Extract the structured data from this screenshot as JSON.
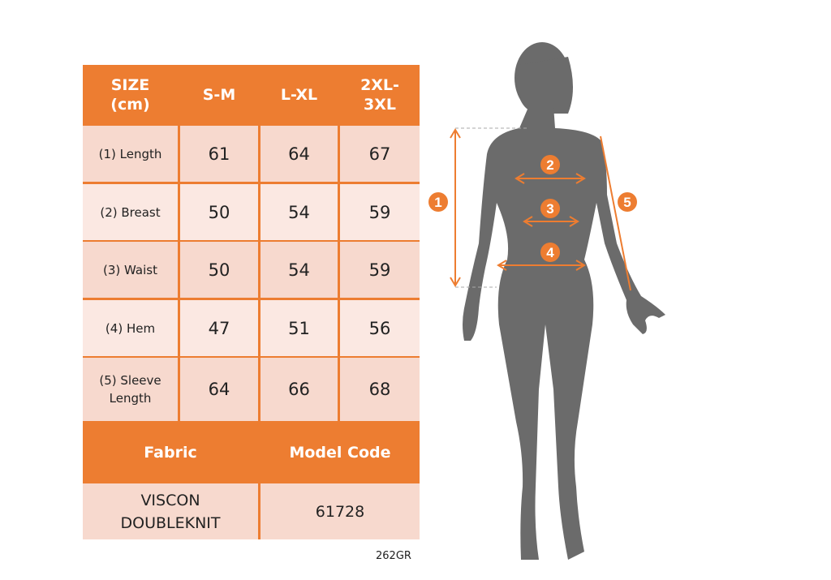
{
  "table": {
    "header": [
      "SIZE (cm)",
      "S-M",
      "L-XL",
      "2XL-3XL"
    ],
    "header_lines": [
      [
        "SIZE",
        "(cm)"
      ],
      [
        "S-M"
      ],
      [
        "L-XL"
      ],
      [
        "2XL-",
        "3XL"
      ]
    ],
    "rows": [
      {
        "label": "(1) Length",
        "values": [
          "61",
          "64",
          "67"
        ]
      },
      {
        "label": "(2) Breast",
        "values": [
          "50",
          "54",
          "59"
        ]
      },
      {
        "label": "(3) Waist",
        "values": [
          "50",
          "54",
          "59"
        ]
      },
      {
        "label": "(4) Hem",
        "values": [
          "47",
          "51",
          "56"
        ]
      },
      {
        "label_lines": [
          "(5) Sleeve",
          "Length"
        ],
        "label": "(5) Sleeve Length",
        "values": [
          "64",
          "66",
          "68"
        ]
      }
    ],
    "fabric_header": "Fabric",
    "model_code_header": "Model Code",
    "fabric_lines": [
      "VISCON",
      "DOUBLEKNIT"
    ],
    "model_code": "61728"
  },
  "figure": {
    "markers": [
      "1",
      "2",
      "3",
      "4",
      "5"
    ],
    "silhouette_color": "#6b6b6b",
    "accent_color": "#ed7d31"
  },
  "product_code": "262GR"
}
